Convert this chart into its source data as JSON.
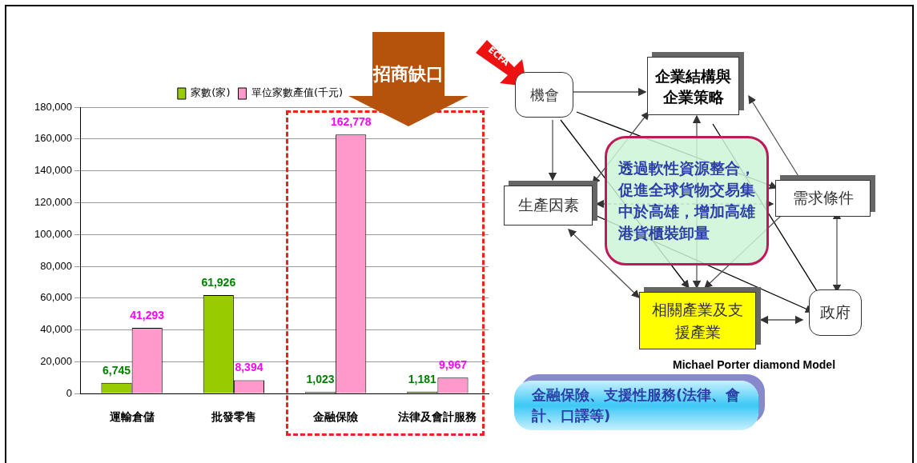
{
  "chart_data": [
    {
      "type": "bar",
      "categories": [
        "運輸倉儲",
        "批發零售",
        "金融保險",
        "法律及會計服務"
      ],
      "series": [
        {
          "name": "家數(家)",
          "color": "#99cc00",
          "values": [
            6745,
            61926,
            1023,
            1181
          ],
          "value_labels": [
            "6,745",
            "61,926",
            "1,023",
            "1,181"
          ]
        },
        {
          "name": "單位家數產值(千元)",
          "color": "#ff99cc",
          "values": [
            41293,
            8394,
            162778,
            9967
          ],
          "value_labels": [
            "41,293",
            "8,394",
            "162,778",
            "9,967"
          ]
        }
      ],
      "ylim": [
        0,
        180000
      ],
      "yticks": [
        0,
        {
          "value": 20000,
          "label": "20,000"
        },
        {
          "value": 40000,
          "label": "40,000"
        },
        {
          "value": 60000,
          "label": "60,000"
        },
        {
          "value": 80000,
          "label": "80,000"
        },
        {
          "value": 100000,
          "label": "100,000"
        },
        {
          "value": 120000,
          "label": "120,000"
        },
        {
          "value": 140000,
          "label": "140,000"
        },
        {
          "value": 160000,
          "label": "160,000"
        },
        {
          "value": 180000,
          "label": "180,000"
        }
      ],
      "grid": "y",
      "legend": "top",
      "annotations": [
        "招商缺口"
      ]
    },
    {
      "type": "other",
      "annotations": [
        "機會",
        "企業結構與企業策略",
        "生產因素",
        "需求條件",
        "透過軟性資源整合，促進全球貨物交易集中於高雄，增加高雄港貨櫃裝卸量",
        "相關產業及支援產業",
        "政府",
        "Michael Porter diamond Model",
        "金融保險、支援性服務(法律、會計、口譯等)",
        "ECFA"
      ]
    }
  ]
}
